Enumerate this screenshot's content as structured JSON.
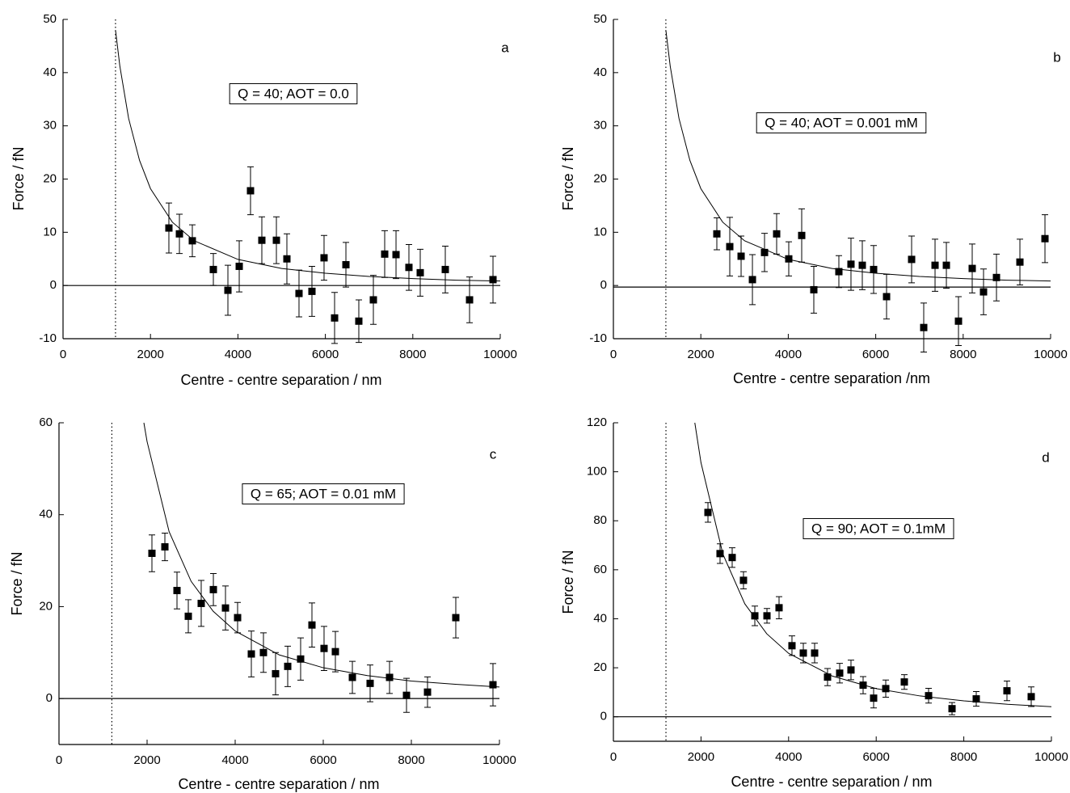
{
  "chart_data": [
    {
      "type": "scatter",
      "panel_label": "a",
      "annotation": "Q = 40; AOT = 0.0",
      "xlabel": "Centre - centre separation / nm",
      "ylabel": "Force / fN",
      "color": "#000000",
      "xlim": [
        0,
        10000
      ],
      "ylim": [
        -10,
        50
      ],
      "xticks": [
        0,
        2000,
        4000,
        6000,
        8000,
        10000
      ],
      "yticks": [
        -10,
        0,
        10,
        20,
        30,
        40,
        50
      ],
      "x": [
        2421,
        2662,
        2957,
        3438,
        3771,
        4030,
        4288,
        4547,
        4880,
        5120,
        5397,
        5693,
        5970,
        6211,
        6470,
        6765,
        7098,
        7357,
        7616,
        7911,
        8170,
        8743,
        9298,
        9834
      ],
      "values": [
        10.8,
        9.7,
        8.4,
        3.0,
        -0.9,
        3.6,
        17.8,
        8.5,
        8.5,
        5.0,
        -1.5,
        -1.1,
        5.2,
        -6.1,
        3.9,
        -6.7,
        -2.7,
        5.9,
        5.8,
        3.4,
        2.4,
        3.0,
        -2.7,
        1.1
      ],
      "errors": [
        4.7,
        3.7,
        3.0,
        3.0,
        4.7,
        4.8,
        4.5,
        4.4,
        4.4,
        4.7,
        4.4,
        4.7,
        4.2,
        4.8,
        4.2,
        4.0,
        4.6,
        4.4,
        4.5,
        4.3,
        4.4,
        4.4,
        4.3,
        4.4
      ],
      "fit": {
        "x": [
          1200,
          1300,
          1500,
          1750,
          2000,
          2500,
          3000,
          4000,
          5000,
          6000,
          7000,
          8000,
          9000,
          10000
        ],
        "values": [
          48,
          41.2,
          31.4,
          23.5,
          18.2,
          11.9,
          8.4,
          4.9,
          3.2,
          2.3,
          1.7,
          1.3,
          1.0,
          0.85
        ]
      },
      "hline": 0,
      "vline": 1200
    },
    {
      "type": "scatter",
      "panel_label": "b",
      "annotation": "Q = 40; AOT = 0.001 mM",
      "xlabel": "Centre - centre separation /nm",
      "ylabel": "Force / fN",
      "color": "#000000",
      "xlim": [
        0,
        10000
      ],
      "ylim": [
        -10,
        50
      ],
      "xticks": [
        0,
        2000,
        4000,
        6000,
        8000,
        10000
      ],
      "yticks": [
        -10,
        0,
        10,
        20,
        30,
        40,
        50
      ],
      "x": [
        2366,
        2662,
        2921,
        3180,
        3457,
        3734,
        4011,
        4307,
        4584,
        5157,
        5434,
        5693,
        5952,
        6248,
        6821,
        7098,
        7357,
        7616,
        7893,
        8207,
        8466,
        8762,
        9298,
        9871
      ],
      "values": [
        9.7,
        7.3,
        5.5,
        1.1,
        6.2,
        9.7,
        5.0,
        9.4,
        -0.8,
        2.6,
        4.0,
        3.8,
        3.0,
        -2.1,
        4.9,
        -7.9,
        3.8,
        3.8,
        -6.7,
        3.2,
        -1.2,
        1.5,
        4.4,
        8.8
      ],
      "errors": [
        3.0,
        5.5,
        3.8,
        4.7,
        3.6,
        3.8,
        3.2,
        5.0,
        4.4,
        3.0,
        4.9,
        4.6,
        4.5,
        4.2,
        4.4,
        4.6,
        4.9,
        4.3,
        4.6,
        4.6,
        4.3,
        4.4,
        4.3,
        4.5
      ],
      "fit": {
        "x": [
          1200,
          1300,
          1500,
          1750,
          2000,
          2500,
          3000,
          4000,
          5000,
          6000,
          7000,
          8000,
          9000,
          10000
        ],
        "values": [
          48,
          41.2,
          31.4,
          23.5,
          18.2,
          11.9,
          8.4,
          4.9,
          3.2,
          2.3,
          1.7,
          1.3,
          1.0,
          0.85
        ]
      },
      "hline": -0.3,
      "vline": 1200
    },
    {
      "type": "scatter",
      "panel_label": "c",
      "annotation": "Q = 65; AOT = 0.01 mM",
      "xlabel": "Centre - centre separation / nm",
      "ylabel": "Force / fN",
      "color": "#000000",
      "xlim": [
        0,
        10000
      ],
      "ylim": [
        -10,
        60
      ],
      "xticks": [
        0,
        2000,
        4000,
        6000,
        8000,
        10000
      ],
      "yticks": [
        0,
        20,
        40,
        60
      ],
      "x": [
        2110,
        2404,
        2679,
        2936,
        3229,
        3505,
        3780,
        4055,
        4367,
        4642,
        4917,
        5193,
        5486,
        5743,
        6018,
        6275,
        6661,
        7064,
        7505,
        7890,
        8367,
        9009,
        9853
      ],
      "values": [
        31.6,
        33.0,
        23.5,
        17.9,
        20.7,
        23.7,
        19.7,
        17.6,
        9.7,
        10.0,
        5.4,
        7.0,
        8.6,
        16.0,
        10.9,
        10.2,
        4.6,
        3.3,
        4.6,
        0.7,
        1.4,
        17.6,
        3.0
      ],
      "errors": [
        4.0,
        3.0,
        4.0,
        3.6,
        5.0,
        3.5,
        4.8,
        3.3,
        5.0,
        4.3,
        4.6,
        4.4,
        4.6,
        4.8,
        4.8,
        4.4,
        3.5,
        4.0,
        3.5,
        3.7,
        3.3,
        4.4,
        4.6
      ],
      "fit": {
        "x": [
          1927,
          2000,
          2500,
          3000,
          3500,
          4000,
          5000,
          6000,
          7000,
          8000,
          9000,
          10000
        ],
        "values": [
          60,
          55.9,
          36.3,
          25.5,
          19.0,
          14.7,
          9.5,
          6.7,
          5.0,
          3.8,
          3.1,
          2.5
        ]
      },
      "hline": 0,
      "vline": 1200
    },
    {
      "type": "scatter",
      "panel_label": "d",
      "annotation": "Q = 90; AOT = 0.1mM",
      "xlabel": "Centre - centre separation / nm",
      "ylabel": "Force / fN",
      "color": "#000000",
      "xlim": [
        0,
        10000
      ],
      "ylim": [
        -10,
        120
      ],
      "xticks": [
        0,
        2000,
        4000,
        6000,
        8000,
        10000
      ],
      "yticks": [
        0,
        20,
        40,
        60,
        80,
        100,
        120
      ],
      "x": [
        2159,
        2435,
        2712,
        2970,
        3229,
        3506,
        3782,
        4077,
        4336,
        4594,
        4889,
        5166,
        5424,
        5701,
        5941,
        6218,
        6642,
        7196,
        7731,
        8284,
        8985,
        9539
      ],
      "values": [
        83.4,
        66.6,
        65,
        55.7,
        41.2,
        41.2,
        44.5,
        29,
        26,
        26,
        16.2,
        17.8,
        19.1,
        12.9,
        7.6,
        11.5,
        14.2,
        8.6,
        3.3,
        7.3,
        10.6,
        8.2
      ],
      "errors": [
        4,
        4,
        4,
        3.5,
        4,
        3,
        4.5,
        4,
        4,
        4,
        3.5,
        4,
        4,
        3.5,
        4,
        3.5,
        3,
        3,
        2.5,
        3,
        4,
        4
      ],
      "fit": {
        "x": [
          1859,
          2000,
          2500,
          3000,
          3500,
          4000,
          5000,
          6000,
          7000,
          8000,
          9000,
          10000
        ],
        "values": [
          120,
          103.7,
          66.4,
          46.1,
          33.9,
          25.9,
          16.6,
          11.5,
          8.5,
          6.5,
          5.1,
          4.1
        ]
      },
      "hline": 0,
      "vline": 1200
    }
  ]
}
